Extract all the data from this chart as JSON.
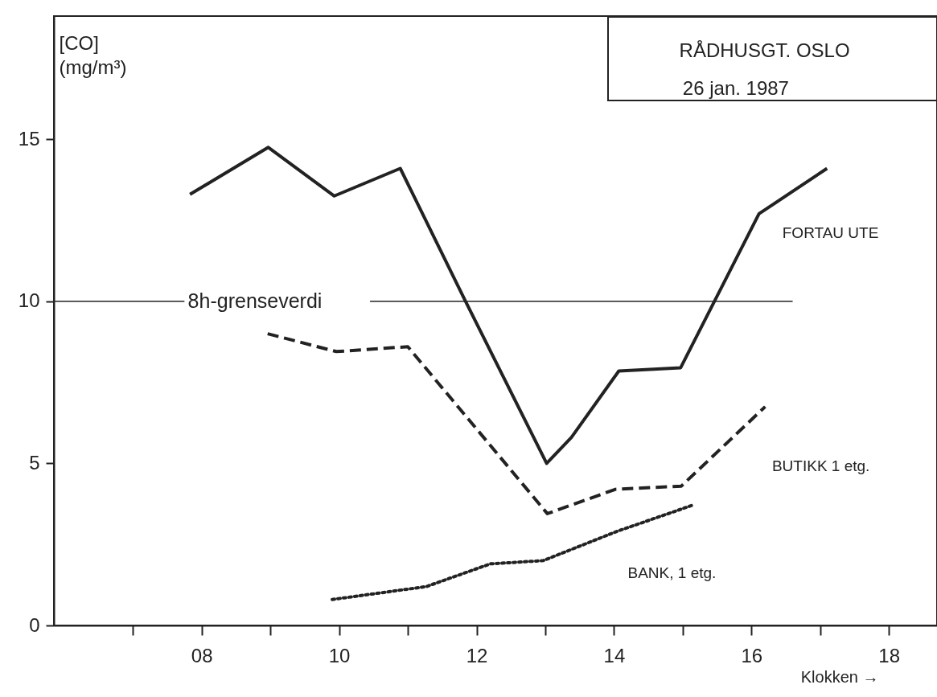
{
  "chart_data": {
    "type": "line",
    "title": "RÅDHUSGT. OSLO",
    "subtitle": "26 jan. 1987",
    "xlabel": "Klokken →",
    "ylabel": "[CO] (mg/m³)",
    "xlim": [
      5.85,
      18.7
    ],
    "ylim": [
      0,
      18.8
    ],
    "xticks": [
      {
        "value": 7,
        "label": null
      },
      {
        "value": 8,
        "label": "08"
      },
      {
        "value": 9,
        "label": null
      },
      {
        "value": 10,
        "label": "10"
      },
      {
        "value": 11,
        "label": null
      },
      {
        "value": 12,
        "label": "12"
      },
      {
        "value": 13,
        "label": null
      },
      {
        "value": 14,
        "label": "14"
      },
      {
        "value": 15,
        "label": null
      },
      {
        "value": 16,
        "label": "16"
      },
      {
        "value": 17,
        "label": null
      },
      {
        "value": 18,
        "label": "18"
      }
    ],
    "yticks": [
      0,
      5,
      10,
      15
    ],
    "grid": false,
    "legend": false,
    "marker": "none",
    "ref_lines": [
      {
        "axis": "y",
        "value": 10,
        "label": "8h-grenseverdi"
      }
    ],
    "series": [
      {
        "name": "FORTAU UTE",
        "color": "#222222",
        "line_style": "solid",
        "x": [
          7.83,
          8.97,
          9.93,
          10.89,
          11.84,
          13.02,
          13.38,
          14.07,
          14.97,
          16.11,
          17.1
        ],
        "values": [
          13.3,
          14.75,
          13.25,
          14.1,
          10,
          5.0,
          5.8,
          7.85,
          7.95,
          12.7,
          14.1
        ]
      },
      {
        "name": "BUTIKK 1 etg.",
        "color": "#222222",
        "line_style": "dashed",
        "x": [
          8.96,
          9.96,
          11.0,
          13.03,
          14.02,
          14.98,
          16.2
        ],
        "values": [
          9.0,
          8.45,
          8.6,
          3.45,
          4.2,
          4.3,
          6.75
        ]
      },
      {
        "name": "BANK, 1 etg.",
        "color": "#222222",
        "line_style": "dotted",
        "x": [
          9.9,
          11.27,
          12.2,
          12.97,
          14.04,
          15.13
        ],
        "values": [
          0.8,
          1.2,
          1.9,
          2.0,
          2.9,
          3.7
        ]
      }
    ]
  }
}
